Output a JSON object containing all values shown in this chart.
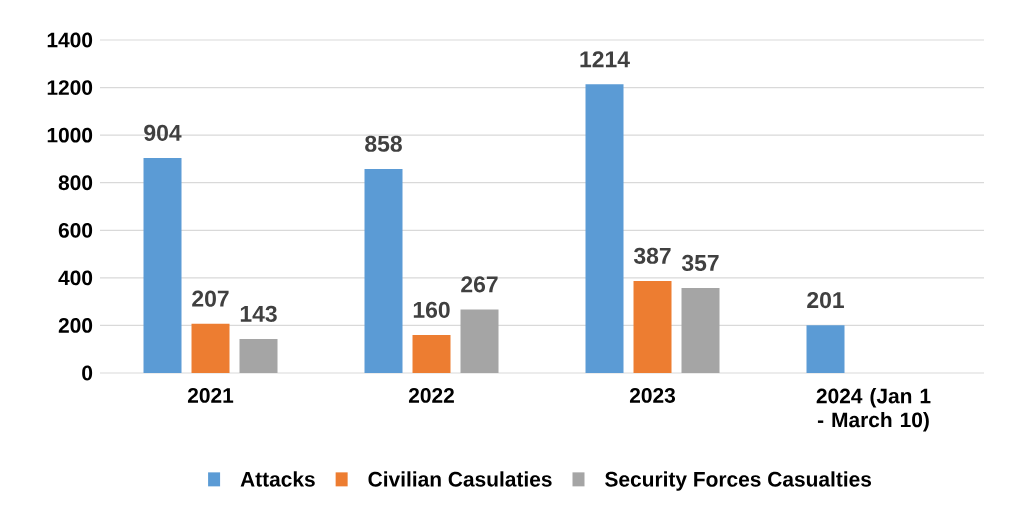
{
  "chart_data": {
    "type": "bar",
    "categories": [
      "2021",
      "2022",
      "2023",
      "2024 (Jan 1 - March 10)"
    ],
    "series": [
      {
        "name": "Attacks",
        "color": "#5b9bd5",
        "values": [
          904,
          858,
          1214,
          201
        ]
      },
      {
        "name": "Civilian Casulaties",
        "color": "#ed7d31",
        "values": [
          207,
          160,
          387,
          null
        ]
      },
      {
        "name": "Security Forces Casualties",
        "color": "#a5a5a5",
        "values": [
          143,
          267,
          357,
          null
        ]
      }
    ],
    "ylim": [
      0,
      1400
    ],
    "yticks": [
      0,
      200,
      400,
      600,
      800,
      1000,
      1200,
      1400
    ],
    "grid": "y",
    "legend": "bottom",
    "data_labels": true
  }
}
